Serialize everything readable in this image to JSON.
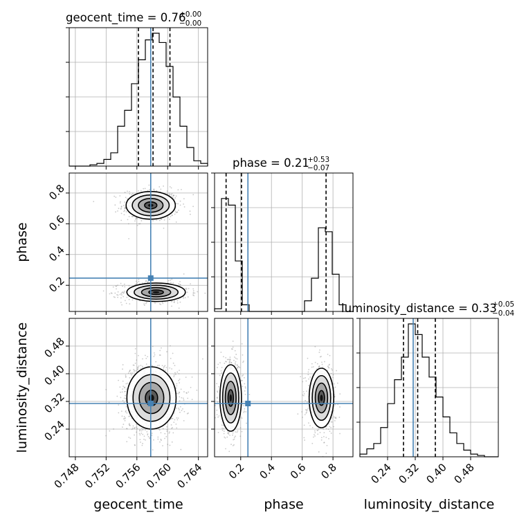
{
  "chart_data": {
    "type": "corner",
    "params": [
      "geocent_time",
      "phase",
      "luminosity_distance"
    ],
    "truths": {
      "geocent_time": 0.7578,
      "phase": 0.247,
      "luminosity_distance": 0.314
    },
    "colors": {
      "truth": "#4682b4",
      "hist": "#000000",
      "grid": "#b0b0b0",
      "points": "#888888"
    },
    "titles": [
      {
        "label": "geocent_time = 0.76",
        "sup": "+0.00",
        "sub": "−0.00"
      },
      {
        "label": "phase = 0.21",
        "sup": "+0.53",
        "sub": "−0.07"
      },
      {
        "label": "luminosity_distance = 0.33",
        "sup": "+0.05",
        "sub": "−0.04"
      }
    ],
    "axis_labels": {
      "geocent_time": "geocent_time",
      "phase": "phase",
      "luminosity_distance": "luminosity_distance"
    },
    "ranges": {
      "geocent_time": [
        0.7472,
        0.7652
      ],
      "phase": [
        0.03,
        0.93
      ],
      "luminosity_distance": [
        0.16,
        0.56
      ]
    },
    "ticks": {
      "geocent_time": [
        {
          "v": 0.748,
          "label": "0.748"
        },
        {
          "v": 0.752,
          "label": "0.752"
        },
        {
          "v": 0.756,
          "label": "0.756"
        },
        {
          "v": 0.76,
          "label": "0.760"
        },
        {
          "v": 0.764,
          "label": "0.764"
        }
      ],
      "phase": [
        {
          "v": 0.2,
          "label": "0.2"
        },
        {
          "v": 0.4,
          "label": "0.4"
        },
        {
          "v": 0.6,
          "label": "0.6"
        },
        {
          "v": 0.8,
          "label": "0.8"
        }
      ],
      "luminosity_distance": [
        {
          "v": 0.24,
          "label": "0.24"
        },
        {
          "v": 0.32,
          "label": "0.32"
        },
        {
          "v": 0.4,
          "label": "0.40"
        },
        {
          "v": 0.48,
          "label": "0.48"
        }
      ]
    },
    "quantiles": {
      "geocent_time": [
        0.7562,
        0.7581,
        0.7603
      ],
      "phase": [
        0.105,
        0.205,
        0.755
      ],
      "luminosity_distance": [
        0.286,
        0.327,
        0.378
      ]
    },
    "hist1d": {
      "geocent_time": {
        "edges": [
          0.7472,
          0.7481,
          0.749,
          0.7499,
          0.7508,
          0.7517,
          0.7526,
          0.7535,
          0.7544,
          0.7553,
          0.7562,
          0.7571,
          0.758,
          0.7589,
          0.7598,
          0.7607,
          0.7616,
          0.7625,
          0.7634,
          0.7643,
          0.7652
        ],
        "counts": [
          0,
          0,
          0,
          0.01,
          0.02,
          0.05,
          0.1,
          0.3,
          0.42,
          0.62,
          0.8,
          0.95,
          1.0,
          0.93,
          0.75,
          0.52,
          0.3,
          0.14,
          0.04,
          0.02
        ]
      },
      "phase": {
        "edges": [
          0.03,
          0.075,
          0.12,
          0.165,
          0.21,
          0.255,
          0.3,
          0.345,
          0.39,
          0.435,
          0.48,
          0.525,
          0.57,
          0.615,
          0.66,
          0.705,
          0.75,
          0.795,
          0.84,
          0.885,
          0.93
        ],
        "counts": [
          0.02,
          0.85,
          0.8,
          0.38,
          0.05,
          0,
          0,
          0,
          0,
          0,
          0,
          0,
          0,
          0.08,
          0.25,
          0.63,
          0.6,
          0.28,
          0.05,
          0
        ]
      },
      "luminosity_distance": {
        "edges": [
          0.16,
          0.18,
          0.2,
          0.22,
          0.24,
          0.26,
          0.28,
          0.3,
          0.32,
          0.34,
          0.36,
          0.38,
          0.4,
          0.42,
          0.44,
          0.46,
          0.48,
          0.5,
          0.52,
          0.54,
          0.56
        ],
        "counts": [
          0.02,
          0.06,
          0.1,
          0.22,
          0.4,
          0.58,
          0.75,
          1.0,
          0.92,
          0.75,
          0.6,
          0.45,
          0.3,
          0.18,
          0.1,
          0.05,
          0.02,
          0.01,
          0,
          0
        ]
      }
    },
    "blobs2d": {
      "phase|geocent_time": [
        {
          "cx": 0.7578,
          "cy": 0.72,
          "sx": 0.0016,
          "sy": 0.045,
          "w": 0.5
        },
        {
          "cx": 0.7585,
          "cy": 0.155,
          "sx": 0.0019,
          "sy": 0.03,
          "w": 0.5
        }
      ],
      "luminosity_distance|geocent_time": [
        {
          "cx": 0.7579,
          "cy": 0.33,
          "sx": 0.0016,
          "sy": 0.045,
          "w": 1.0
        }
      ],
      "luminosity_distance|phase": [
        {
          "cx": 0.135,
          "cy": 0.33,
          "sx": 0.035,
          "sy": 0.048,
          "w": 0.5
        },
        {
          "cx": 0.725,
          "cy": 0.33,
          "sx": 0.04,
          "sy": 0.043,
          "w": 0.5
        }
      ]
    }
  }
}
